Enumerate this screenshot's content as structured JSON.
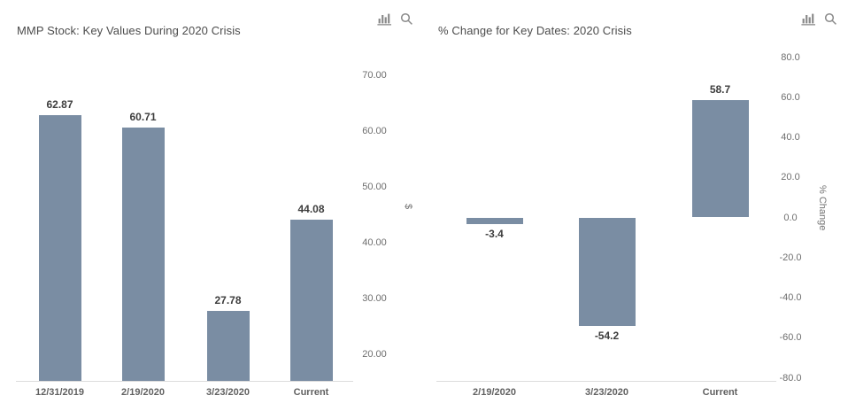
{
  "icons": {
    "chart_type": "bar-chart-icon",
    "search": "magnifier-icon"
  },
  "chart_data": [
    {
      "type": "bar",
      "title": "MMP Stock: Key Values During 2020 Crisis",
      "categories": [
        "12/31/2019",
        "2/19/2020",
        "3/23/2020",
        "Current"
      ],
      "values": [
        62.87,
        60.71,
        27.78,
        44.08
      ],
      "data_labels": [
        "62.87",
        "60.71",
        "27.78",
        "44.08"
      ],
      "xlabel": "",
      "ylabel": "$",
      "yticks": [
        70,
        60,
        50,
        40,
        30,
        20
      ],
      "ytick_labels": [
        "70.00",
        "60.00",
        "50.00",
        "40.00",
        "30.00",
        "20.00"
      ],
      "ylim": [
        15.2,
        72.4
      ],
      "y_axis_side": "right",
      "grid": false,
      "legend": "none",
      "bar_color": "#7a8da3"
    },
    {
      "type": "bar",
      "title": "% Change for Key Dates: 2020 Crisis",
      "categories": [
        "2/19/2020",
        "3/23/2020",
        "Current"
      ],
      "values": [
        -3.4,
        -54.2,
        58.7
      ],
      "data_labels": [
        "-3.4",
        "-54.2",
        "58.7"
      ],
      "xlabel": "",
      "ylabel": "% Change",
      "yticks": [
        80,
        60,
        40,
        20,
        0,
        -20,
        -40,
        -60,
        -80
      ],
      "ytick_labels": [
        "80.0",
        "60.0",
        "40.0",
        "20.0",
        "0.0",
        "-20.0",
        "-40.0",
        "-60.0",
        "-80.0"
      ],
      "ylim": [
        -81.5,
        81.5
      ],
      "y_axis_side": "right",
      "grid": false,
      "legend": "none",
      "bar_color": "#7a8da3"
    }
  ]
}
